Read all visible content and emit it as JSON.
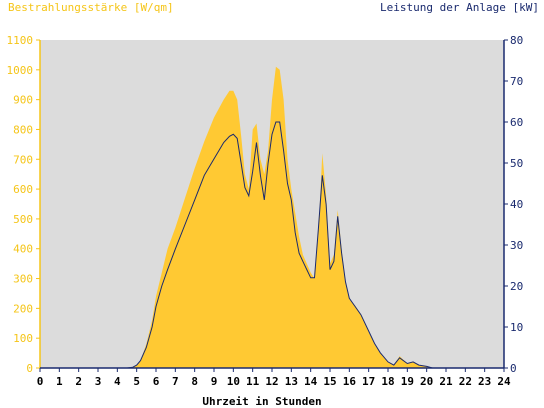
{
  "chart_data": {
    "type": "area",
    "title_left": "Bestrahlungsstärke [W/qm]",
    "title_right": "Leistung der Anlage [kW]",
    "xlabel": "Uhrzeit in Stunden",
    "xlim": [
      0,
      24
    ],
    "x_ticks": [
      "0",
      "1",
      "2",
      "3",
      "4",
      "5",
      "6",
      "7",
      "8",
      "9",
      "10",
      "11",
      "12",
      "13",
      "14",
      "15",
      "16",
      "17",
      "18",
      "19",
      "20",
      "21",
      "22",
      "23",
      "24"
    ],
    "y_left": {
      "lim": [
        0,
        1100
      ],
      "ticks": [
        "0",
        "100",
        "200",
        "300",
        "400",
        "500",
        "600",
        "700",
        "800",
        "900",
        "1000",
        "1100"
      ]
    },
    "y_right": {
      "lim": [
        0,
        80
      ],
      "ticks": [
        "0",
        "10",
        "20",
        "30",
        "40",
        "50",
        "60",
        "70",
        "80"
      ]
    },
    "grid": false,
    "colors": {
      "plot_bg": "#dcdcdc",
      "irradiance_fill": "#ffc933",
      "power_line": "#1a2a6e",
      "left_axis": "#f5c518",
      "right_axis": "#1a2a6e"
    },
    "series": [
      {
        "axis": "left",
        "style": "area",
        "x": [
          0,
          4.5,
          4.8,
          5.0,
          5.2,
          5.5,
          5.8,
          6.0,
          6.3,
          6.6,
          7.0,
          7.5,
          8.0,
          8.5,
          9.0,
          9.5,
          9.8,
          10.0,
          10.2,
          10.4,
          10.6,
          10.8,
          11.0,
          11.2,
          11.4,
          11.6,
          11.8,
          12.0,
          12.2,
          12.4,
          12.6,
          12.8,
          13.0,
          13.2,
          13.4,
          13.6,
          13.8,
          14.0,
          14.2,
          14.4,
          14.6,
          14.8,
          15.0,
          15.2,
          15.4,
          15.6,
          15.8,
          16.0,
          16.3,
          16.6,
          17.0,
          17.3,
          17.6,
          18.0,
          18.3,
          18.6,
          19.0,
          19.3,
          19.6,
          20.0,
          20.3,
          24
        ],
        "values": [
          0,
          0,
          3,
          10,
          25,
          80,
          160,
          240,
          320,
          400,
          470,
          570,
          670,
          760,
          840,
          900,
          930,
          930,
          900,
          780,
          650,
          600,
          800,
          820,
          700,
          650,
          730,
          900,
          1010,
          1000,
          900,
          700,
          600,
          520,
          440,
          380,
          350,
          320,
          300,
          450,
          720,
          580,
          350,
          380,
          530,
          400,
          290,
          230,
          210,
          180,
          120,
          80,
          50,
          20,
          10,
          40,
          15,
          20,
          10,
          5,
          0,
          0
        ]
      },
      {
        "axis": "right",
        "style": "line",
        "x": [
          0,
          4.5,
          4.8,
          5.0,
          5.2,
          5.5,
          5.8,
          6.0,
          6.3,
          6.6,
          7.0,
          7.5,
          8.0,
          8.5,
          9.0,
          9.5,
          9.8,
          10.0,
          10.2,
          10.4,
          10.6,
          10.8,
          11.0,
          11.2,
          11.4,
          11.6,
          11.8,
          12.0,
          12.2,
          12.4,
          12.6,
          12.8,
          13.0,
          13.2,
          13.4,
          13.6,
          13.8,
          14.0,
          14.2,
          14.4,
          14.6,
          14.8,
          15.0,
          15.2,
          15.4,
          15.6,
          15.8,
          16.0,
          16.3,
          16.6,
          17.0,
          17.3,
          17.6,
          18.0,
          18.3,
          18.6,
          19.0,
          19.3,
          19.6,
          20.0,
          20.3,
          24
        ],
        "values": [
          0,
          0,
          0.2,
          0.7,
          1.8,
          5,
          10,
          15,
          20,
          24,
          29,
          35,
          41,
          47,
          51,
          55,
          56.5,
          57,
          56,
          50,
          44,
          42,
          48,
          55,
          47,
          41,
          50,
          57,
          60,
          60,
          53,
          45,
          41,
          33,
          28,
          26,
          24,
          22,
          22,
          34,
          47,
          40,
          24,
          26,
          37,
          28,
          21,
          17,
          15,
          13,
          9,
          6,
          3.7,
          1.5,
          0.7,
          2.5,
          1.1,
          1.5,
          0.7,
          0.4,
          0,
          0
        ]
      }
    ]
  }
}
